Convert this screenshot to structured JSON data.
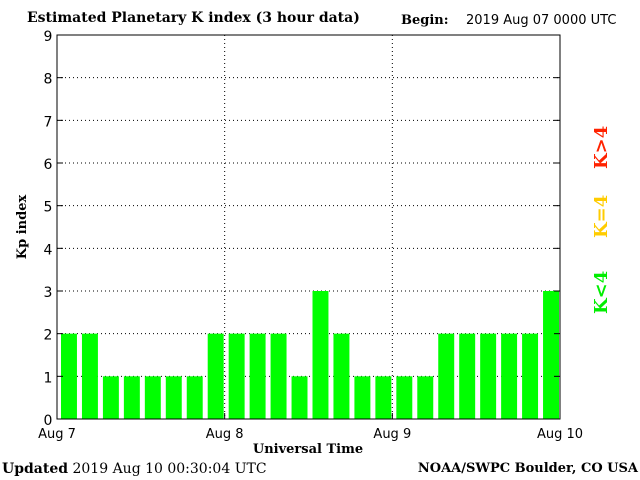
{
  "header": {
    "title": "Estimated Planetary K index (3 hour data)",
    "begin_label": "Begin:",
    "begin_value": "2019 Aug 07 0000 UTC"
  },
  "footer": {
    "updated_label": "Updated",
    "updated_value": "2019 Aug 10 00:30:04 UTC",
    "credit": "NOAA/SWPC Boulder, CO USA"
  },
  "legend": {
    "low": {
      "label": "K<4",
      "color": "#00ee00"
    },
    "mid": {
      "label": "K=4",
      "color": "#ffcc00"
    },
    "high": {
      "label": "K>4",
      "color": "#ff2200"
    }
  },
  "chart_data": {
    "type": "bar",
    "xlabel": "Universal Time",
    "ylabel": "Kp index",
    "ylim": [
      0,
      9
    ],
    "yticks": [
      0,
      1,
      2,
      3,
      4,
      5,
      6,
      7,
      8,
      9
    ],
    "xticks": [
      "Aug 7",
      "Aug 8",
      "Aug 9",
      "Aug 10"
    ],
    "grid": "dotted",
    "bar_color": "#00ff00",
    "values": [
      2,
      2,
      1,
      1,
      1,
      1,
      1,
      2,
      2,
      2,
      2,
      1,
      3,
      2,
      1,
      1,
      1,
      1,
      2,
      2,
      2,
      2,
      2,
      3
    ]
  }
}
